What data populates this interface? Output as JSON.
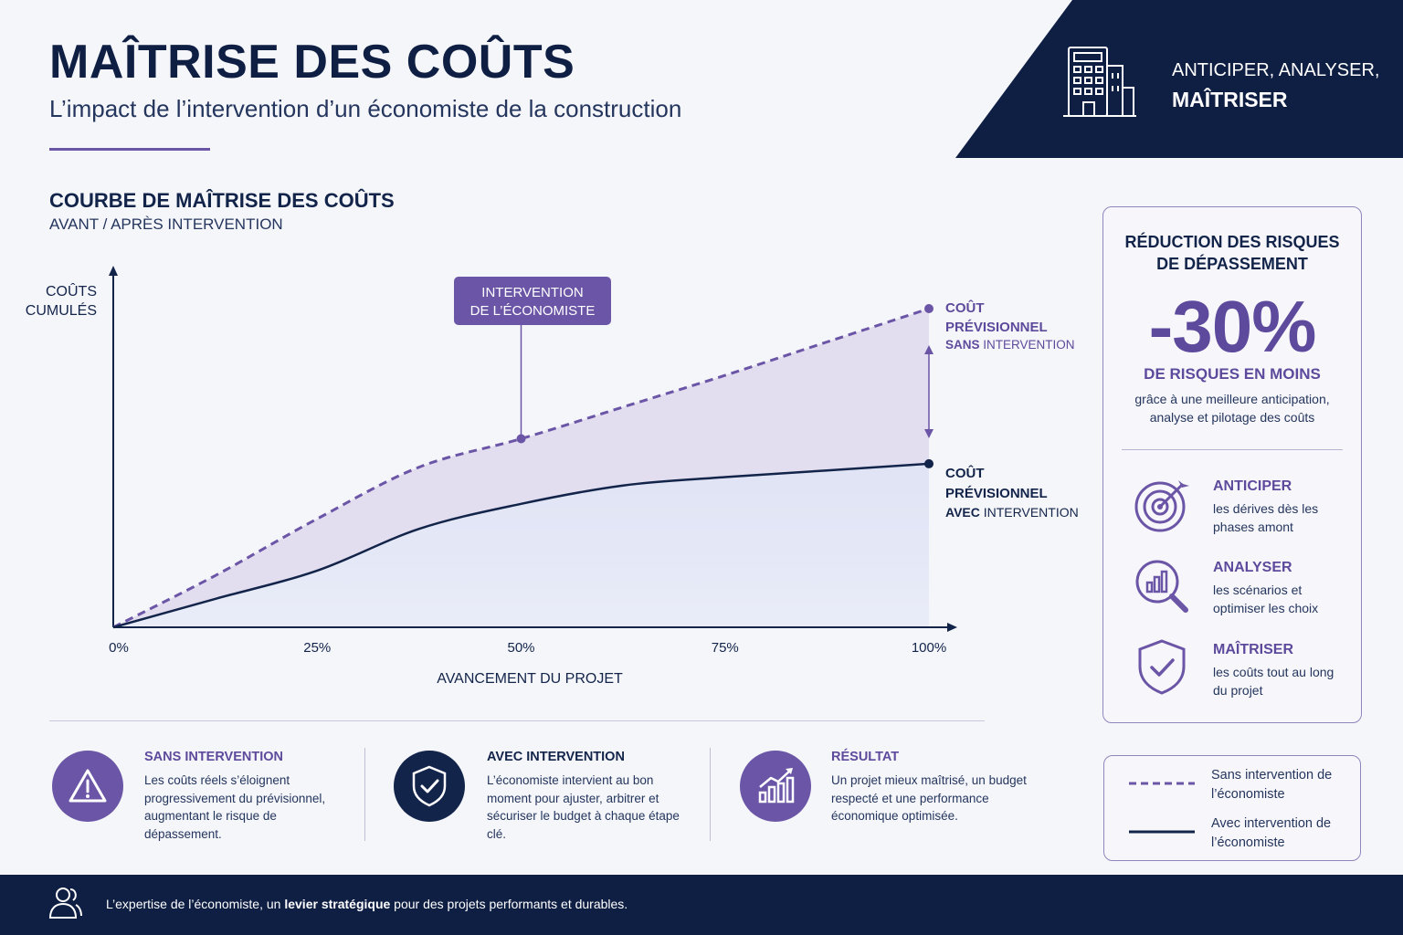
{
  "header": {
    "title": "MAÎTRISE DES COÛTS",
    "subtitle": "L’impact de l’intervention d’un économiste de la construction",
    "banner_line1": "ANTICIPER, ANALYSER,",
    "banner_line2": "MAÎTRISER"
  },
  "chart_section": {
    "title": "COURBE DE MAÎTRISE DES COÛTS",
    "subtitle": "AVANT / APRÈS INTERVENTION"
  },
  "chart_data": {
    "type": "line",
    "ylabel": "COÛTS CUMULÉS",
    "xlabel": "AVANCEMENT DU PROJET",
    "x": [
      0,
      25,
      50,
      75,
      100
    ],
    "x_tick_labels": [
      "0%",
      "25%",
      "50%",
      "75%",
      "100%"
    ],
    "series": [
      {
        "label_line1": "COÛT",
        "label_line2": "PRÉVISIONNEL",
        "label_bold": "SANS",
        "label_rest": " INTERVENTION",
        "style": "dashed",
        "color": "#6b55a6",
        "x": [
          0,
          12.5,
          25,
          37.5,
          50,
          62.5,
          75,
          87.5,
          100
        ],
        "y": [
          0,
          15.5,
          32.5,
          48,
          56.5,
          66,
          75.5,
          85.5,
          95.5
        ]
      },
      {
        "label_line1": "COÛT",
        "label_line2": "PRÉVISIONNEL",
        "label_bold": "AVEC",
        "label_rest": " INTERVENTION",
        "style": "solid",
        "color": "#13244a",
        "x": [
          0,
          12.5,
          25,
          37.5,
          50,
          62.5,
          75,
          87.5,
          100
        ],
        "y": [
          0,
          8.5,
          17,
          29.5,
          37,
          42.5,
          45,
          47,
          49
        ]
      }
    ],
    "annotation": {
      "line1": "INTERVENTION",
      "line2": "DE L’ÉCONOMISTE",
      "x": 50
    },
    "colors": {
      "dashed_fill": "#ddd6ec",
      "solid_fill": "#dfe3f4",
      "axis": "#13244a"
    }
  },
  "side_panel": {
    "heading_line1": "RÉDUCTION DES RISQUES",
    "heading_line2": "DE DÉPASSEMENT",
    "value": "-30%",
    "value_label": "DE RISQUES EN MOINS",
    "value_desc": "grâce à une meilleure anticipation, analyse et pilotage des coûts",
    "features": [
      {
        "icon": "target-icon",
        "title": "ANTICIPER",
        "desc": "les dérives dès les phases amont"
      },
      {
        "icon": "magnifier-chart-icon",
        "title": "ANALYSER",
        "desc": "les scénarios et optimiser les choix"
      },
      {
        "icon": "shield-check-icon",
        "title": "MAÎTRISER",
        "desc": "les coûts tout au long du projet"
      }
    ]
  },
  "info_blocks": [
    {
      "icon": "warning-icon",
      "title": "SANS INTERVENTION",
      "desc": "Les coûts réels s’éloignent progressivement du prévisionnel, augmentant le risque de dépassement.",
      "circle_color": "#6b55a6",
      "title_color": "#5e4a9c"
    },
    {
      "icon": "shield-check-icon",
      "title": "AVEC INTERVENTION",
      "desc": "L’économiste intervient au bon moment pour ajuster, arbitrer et sécuriser le budget à chaque étape clé.",
      "circle_color": "#13244a",
      "title_color": "#13244a"
    },
    {
      "icon": "growth-chart-icon",
      "title": "RÉSULTAT",
      "desc": "Un projet mieux maîtrisé, un budget respecté et une performance économique optimisée.",
      "circle_color": "#6b55a6",
      "title_color": "#5e4a9c"
    }
  ],
  "legend": {
    "dashed": "Sans intervention de l’économiste",
    "solid": "Avec intervention de l’économiste"
  },
  "footer": {
    "before": "L’expertise de l’économiste, un ",
    "bold": "levier stratégique",
    "after": " pour des projets performants et durables."
  }
}
